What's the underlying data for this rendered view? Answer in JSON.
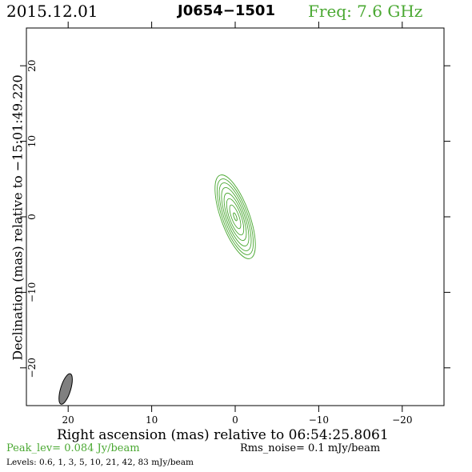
{
  "header": {
    "date": "2015.12.01",
    "source": "J0654−1501",
    "freq": "Freq: 7.6 GHz"
  },
  "colors": {
    "green": "#4aa832",
    "beam_fill": "#808080",
    "axis": "#000000"
  },
  "footer": {
    "peak": "Peak_lev=  0.084 Jy/beam",
    "rms": "Rms_noise=   0.1 mJy/beam",
    "levels": "Levels: 0.6,    1,    3,    5,   10,   21,   42,   83 mJy/beam"
  },
  "chart_data": {
    "type": "contour",
    "xlabel": "Right ascension (mas) relative to 06:54:25.8061",
    "ylabel": "Declination (mas) relative to −15:01:49.220",
    "xlim": [
      25,
      -25
    ],
    "ylim": [
      -25,
      25
    ],
    "x_ticks": [
      20,
      10,
      0,
      -10,
      -20
    ],
    "x_tick_labels": [
      "20",
      "10",
      "0",
      "−10",
      "−20"
    ],
    "y_ticks": [
      20,
      10,
      0,
      -10,
      -20
    ],
    "y_tick_labels": [
      "20",
      "10",
      "0",
      "−10",
      "−20"
    ],
    "contour_levels_mJy": [
      0.6,
      1,
      3,
      5,
      10,
      21,
      42,
      83
    ],
    "peak_Jy_per_beam": 0.084,
    "rms_mJy_per_beam": 0.1,
    "source": {
      "center": [
        0,
        0
      ],
      "pa_deg": 20,
      "contours": [
        {
          "level": 0.6,
          "major": 5.3,
          "minor": 1.7
        },
        {
          "level": 1,
          "major": 4.8,
          "minor": 1.5
        },
        {
          "level": 3,
          "major": 4.3,
          "minor": 1.3
        },
        {
          "level": 5,
          "major": 3.7,
          "minor": 1.1
        },
        {
          "level": 10,
          "major": 3.0,
          "minor": 0.9
        },
        {
          "level": 21,
          "major": 2.3,
          "minor": 0.7
        },
        {
          "level": 42,
          "major": 1.5,
          "minor": 0.45
        },
        {
          "level": 83,
          "major": 0.5,
          "minor": 0.15
        }
      ]
    },
    "beam": {
      "center": [
        20.3,
        -22.8
      ],
      "major": 1.9,
      "minor": 0.6,
      "pa_deg": 17
    },
    "grid": false
  }
}
